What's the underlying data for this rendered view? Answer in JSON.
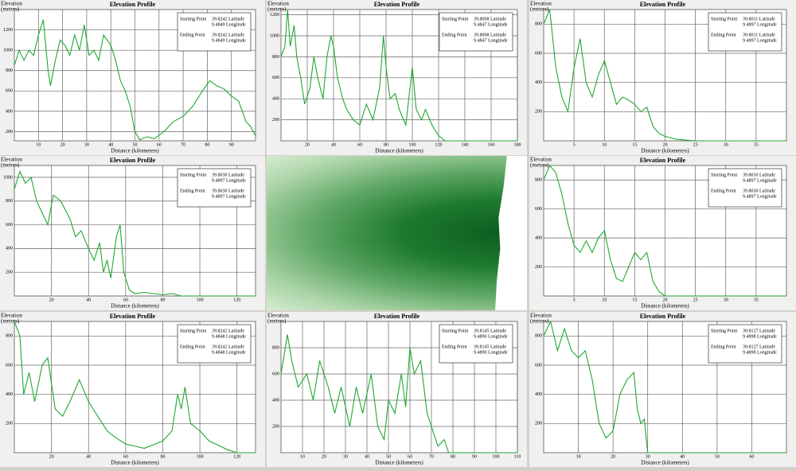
{
  "chart_data": [
    {
      "type": "line",
      "title": "Elevation Profile",
      "y_label": "Elevation",
      "y_unit": "(meters)",
      "x_label": "Distance (kilometers)",
      "start_label": "Starting Point",
      "start_lat": "39.8242 Latitude",
      "start_lon": "9.4849 Longitude",
      "end_label": "Ending Point",
      "end_lat": "39.8242 Latitude",
      "end_lon": "9.4849 Longitude",
      "color": "#1fa832",
      "grid": true,
      "xlim": [
        0,
        100
      ],
      "xticks": [
        10,
        20,
        30,
        40,
        50,
        60,
        70,
        80,
        90
      ],
      "ylim": [
        110,
        1400
      ],
      "yticks": [
        200,
        400,
        600,
        800,
        1000,
        1200
      ],
      "x": [
        0,
        2,
        4,
        6,
        8,
        10,
        12,
        14,
        15,
        17,
        19,
        21,
        23,
        25,
        27,
        29,
        31,
        33,
        35,
        37,
        40,
        42,
        44,
        46,
        48,
        50,
        52,
        55,
        58,
        62,
        66,
        70,
        74,
        78,
        81,
        84,
        87,
        90,
        93,
        96,
        98,
        100
      ],
      "values": [
        850,
        1000,
        900,
        1000,
        950,
        1150,
        1300,
        800,
        650,
        900,
        1100,
        1050,
        950,
        1150,
        1000,
        1250,
        950,
        1000,
        900,
        1150,
        1050,
        900,
        700,
        600,
        450,
        200,
        120,
        150,
        130,
        200,
        300,
        350,
        450,
        600,
        700,
        650,
        620,
        550,
        500,
        300,
        250,
        160
      ]
    },
    {
      "type": "line",
      "title": "Elevation Profile",
      "y_label": "Elevation",
      "y_unit": "(meters)",
      "x_label": "Distance (kilometers)",
      "start_label": "Starting Point",
      "start_lat": "39.8008 Latitude",
      "start_lon": "9.4847 Longitude",
      "end_label": "Ending Point",
      "end_lat": "39.8008 Latitude",
      "end_lon": "9.4847 Longitude",
      "color": "#1fa832",
      "grid": true,
      "xlim": [
        0,
        180
      ],
      "xticks": [
        20,
        40,
        60,
        80,
        100,
        120,
        140,
        160,
        180
      ],
      "ylim": [
        0,
        1250
      ],
      "yticks": [
        200,
        400,
        600,
        800,
        1000,
        1200
      ],
      "x": [
        0,
        3,
        5,
        7,
        10,
        12,
        15,
        18,
        22,
        25,
        28,
        32,
        35,
        38,
        40,
        43,
        47,
        50,
        55,
        60,
        65,
        70,
        75,
        78,
        80,
        83,
        87,
        90,
        95,
        100,
        103,
        107,
        110,
        115,
        120,
        125,
        140,
        180
      ],
      "values": [
        800,
        900,
        1250,
        900,
        1100,
        800,
        600,
        350,
        500,
        800,
        600,
        400,
        800,
        1000,
        900,
        600,
        400,
        300,
        200,
        150,
        350,
        200,
        500,
        1000,
        700,
        400,
        450,
        300,
        150,
        700,
        300,
        200,
        300,
        150,
        50,
        0,
        0,
        0
      ]
    },
    {
      "type": "line",
      "title": "Elevation Profile",
      "y_label": "Elevation",
      "y_unit": "(meters)",
      "x_label": "Distance (kilometers)",
      "start_label": "Starting Point",
      "start_lat": "39.8011 Latitude",
      "start_lon": "9.4897 Longitude",
      "end_label": "Ending Point",
      "end_lat": "39.8011 Latitude",
      "end_lon": "9.4897 Longitude",
      "color": "#1fa832",
      "grid": true,
      "xlim": [
        0,
        40
      ],
      "xticks": [
        5,
        10,
        15,
        20,
        25,
        30,
        35
      ],
      "ylim": [
        0,
        900
      ],
      "yticks": [
        200,
        400,
        600,
        800
      ],
      "x": [
        0,
        1,
        2,
        3,
        4,
        5,
        6,
        7,
        8,
        9,
        10,
        11,
        12,
        13,
        14,
        15,
        16,
        17,
        18,
        19,
        20,
        22,
        25,
        40
      ],
      "values": [
        800,
        900,
        500,
        300,
        200,
        500,
        700,
        400,
        300,
        450,
        550,
        400,
        250,
        300,
        280,
        250,
        200,
        230,
        100,
        50,
        30,
        10,
        0,
        0
      ]
    },
    {
      "type": "line",
      "title": "Elevation Profile",
      "y_label": "Elevation",
      "y_unit": "(meters)",
      "x_label": "Distance (kilometers)",
      "start_label": "Starting Point",
      "start_lat": "39.8030 Latitude",
      "start_lon": "9.4897 Longitude",
      "end_label": "Ending Point",
      "end_lat": "39.8030 Latitude",
      "end_lon": "9.4897 Longitude",
      "color": "#1fa832",
      "grid": true,
      "xlim": [
        0,
        130
      ],
      "xticks": [
        20,
        40,
        60,
        80,
        100,
        120
      ],
      "ylim": [
        0,
        1100
      ],
      "yticks": [
        200,
        400,
        600,
        800,
        1000
      ],
      "x": [
        0,
        3,
        6,
        9,
        12,
        15,
        18,
        21,
        25,
        30,
        33,
        36,
        40,
        43,
        46,
        48,
        50,
        52,
        55,
        57,
        59,
        62,
        65,
        70,
        80,
        85,
        90,
        130
      ],
      "values": [
        900,
        1050,
        950,
        1000,
        800,
        700,
        600,
        850,
        800,
        650,
        500,
        550,
        400,
        300,
        450,
        200,
        300,
        150,
        500,
        600,
        200,
        50,
        20,
        30,
        10,
        20,
        0,
        0
      ]
    },
    {
      "type": "line",
      "title": "Elevation Profile",
      "y_label": "Elevation",
      "y_unit": "(meters)",
      "x_label": "Distance (kilometers)",
      "start_label": "Starting Point",
      "start_lat": "39.8030 Latitude",
      "start_lon": "9.4897 Longitude",
      "end_label": "Ending Point",
      "end_lat": "39.8030 Latitude",
      "end_lon": "9.4897 Longitude",
      "color": "#1fa832",
      "grid": true,
      "xlim": [
        0,
        40
      ],
      "xticks": [
        5,
        10,
        15,
        20,
        25,
        30,
        35
      ],
      "ylim": [
        0,
        900
      ],
      "yticks": [
        200,
        400,
        600,
        800
      ],
      "x": [
        0,
        1,
        2,
        3,
        4,
        5,
        6,
        7,
        8,
        9,
        10,
        11,
        12,
        13,
        14,
        15,
        16,
        17,
        18,
        19,
        20,
        40
      ],
      "values": [
        800,
        900,
        850,
        700,
        500,
        350,
        300,
        380,
        300,
        400,
        450,
        250,
        120,
        100,
        200,
        300,
        250,
        300,
        100,
        30,
        0,
        0
      ]
    },
    {
      "type": "line",
      "title": "Elevation Profile",
      "y_label": "Elevation",
      "y_unit": "(meters)",
      "x_label": "Distance (kilometers)",
      "start_label": "Starting Point",
      "start_lat": "39.8242 Latitude",
      "start_lon": "9.4848 Longitude",
      "end_label": "Ending Point",
      "end_lat": "39.8242 Latitude",
      "end_lon": "9.4848 Longitude",
      "color": "#1fa832",
      "grid": true,
      "xlim": [
        0,
        130
      ],
      "xticks": [
        20,
        40,
        60,
        80,
        100,
        120
      ],
      "ylim": [
        0,
        900
      ],
      "yticks": [
        200,
        400,
        600,
        800
      ],
      "x": [
        0,
        3,
        5,
        8,
        11,
        15,
        18,
        22,
        26,
        30,
        35,
        40,
        45,
        50,
        55,
        60,
        70,
        80,
        85,
        88,
        90,
        92,
        95,
        100,
        105,
        110,
        115,
        120,
        130
      ],
      "values": [
        900,
        800,
        400,
        550,
        350,
        600,
        650,
        300,
        250,
        350,
        500,
        350,
        250,
        150,
        100,
        60,
        30,
        80,
        150,
        400,
        300,
        450,
        200,
        150,
        80,
        50,
        20,
        0,
        0
      ]
    },
    {
      "type": "line",
      "title": "Elevation Profile",
      "y_label": "Elevation",
      "y_unit": "(meters)",
      "x_label": "Distance (kilometers)",
      "start_label": "Starting Point",
      "start_lat": "39.8145 Latitude",
      "start_lon": "9.4890 Longitude",
      "end_label": "Ending Point",
      "end_lat": "39.8145 Latitude",
      "end_lon": "9.4890 Longitude",
      "color": "#1fa832",
      "grid": true,
      "xlim": [
        0,
        110
      ],
      "xticks": [
        10,
        20,
        30,
        40,
        50,
        60,
        70,
        80,
        90,
        100,
        110
      ],
      "ylim": [
        0,
        1000
      ],
      "yticks": [
        200,
        400,
        600,
        800
      ],
      "x": [
        0,
        3,
        5,
        8,
        12,
        15,
        18,
        22,
        25,
        28,
        32,
        35,
        38,
        42,
        45,
        48,
        50,
        53,
        56,
        58,
        60,
        62,
        65,
        68,
        70,
        73,
        76,
        78,
        110
      ],
      "values": [
        600,
        900,
        700,
        500,
        600,
        400,
        700,
        500,
        300,
        500,
        200,
        500,
        300,
        600,
        200,
        100,
        400,
        300,
        600,
        350,
        800,
        600,
        700,
        300,
        200,
        50,
        100,
        0,
        0
      ]
    },
    {
      "type": "line",
      "title": "Elevation Profile",
      "y_label": "Elevation",
      "y_unit": "(meters)",
      "x_label": "Distance (kilometers)",
      "start_label": "Starting Point",
      "start_lat": "39.8127 Latitude",
      "start_lon": "9.4898 Longitude",
      "end_label": "Ending Point",
      "end_lat": "39.8127 Latitude",
      "end_lon": "9.4898 Longitude",
      "color": "#1fa832",
      "grid": true,
      "xlim": [
        0,
        70
      ],
      "xticks": [
        10,
        20,
        30,
        40,
        50,
        60
      ],
      "ylim": [
        0,
        900
      ],
      "yticks": [
        200,
        400,
        600,
        800
      ],
      "x": [
        0,
        2,
        4,
        6,
        8,
        10,
        12,
        14,
        16,
        18,
        20,
        22,
        24,
        26,
        27,
        28,
        29,
        30,
        70
      ],
      "values": [
        800,
        900,
        700,
        850,
        700,
        650,
        700,
        500,
        200,
        100,
        150,
        400,
        500,
        550,
        300,
        200,
        230,
        0,
        0
      ]
    }
  ]
}
